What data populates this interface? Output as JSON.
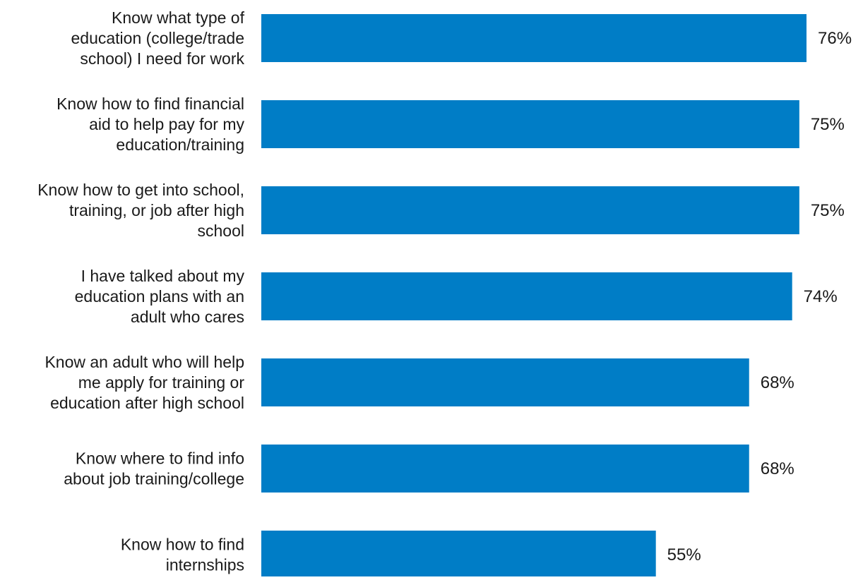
{
  "chart_data": {
    "type": "bar",
    "orientation": "horizontal",
    "categories": [
      [
        "Know what type of",
        "education (college/trade",
        "school) I need for work"
      ],
      [
        "Know how to find financial",
        "aid to help pay for my",
        "education/training"
      ],
      [
        "Know how to get into school,",
        "training, or job after high",
        "school"
      ],
      [
        "I have talked about my",
        "education plans with an",
        "adult who cares"
      ],
      [
        "Know an adult who will help",
        "me apply for training or",
        "education after high school"
      ],
      [
        "Know where to find info",
        "about job training/college"
      ],
      [
        "Know how to find",
        "internships"
      ]
    ],
    "values": [
      76,
      75,
      75,
      74,
      68,
      68,
      55
    ],
    "value_labels": [
      "76%",
      "75%",
      "75%",
      "74%",
      "68%",
      "68%",
      "55%"
    ],
    "unit": "%",
    "xlim": [
      0,
      76
    ],
    "grid": false,
    "legend": "none",
    "bar_color": "#007DC6",
    "text_color": "#1a1a1a"
  }
}
